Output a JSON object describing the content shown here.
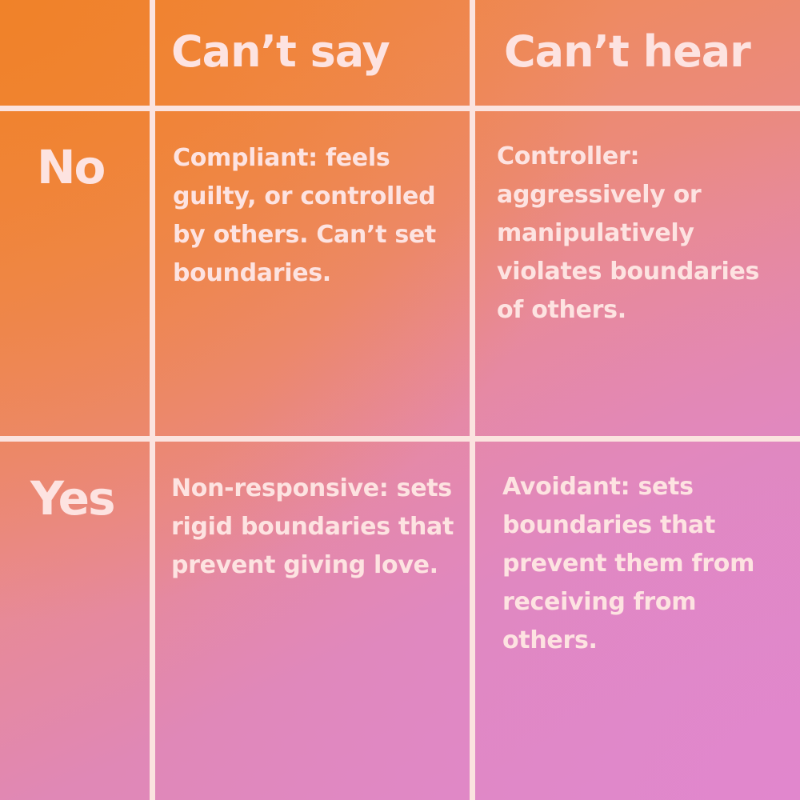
{
  "columns": {
    "say": "Can’t say",
    "hear": "Can’t hear"
  },
  "rows": {
    "no": "No",
    "yes": "Yes"
  },
  "cells": {
    "no_say": "Compliant: feels guilty, or controlled by others. Can’t set boundaries.",
    "no_hear": "Controller: aggressively or manipulatively violates boundaries of others.",
    "yes_say": "Non-responsive: sets rigid boundaries that prevent giving love.",
    "yes_hear": "Avoidant: sets boundaries that prevent them from receiving from others."
  },
  "colors": {
    "gradient_top_left": "#f0843a",
    "gradient_bottom_right": "#df89c7",
    "grid_line": "#fbe3df",
    "text": "#fde3e1"
  }
}
